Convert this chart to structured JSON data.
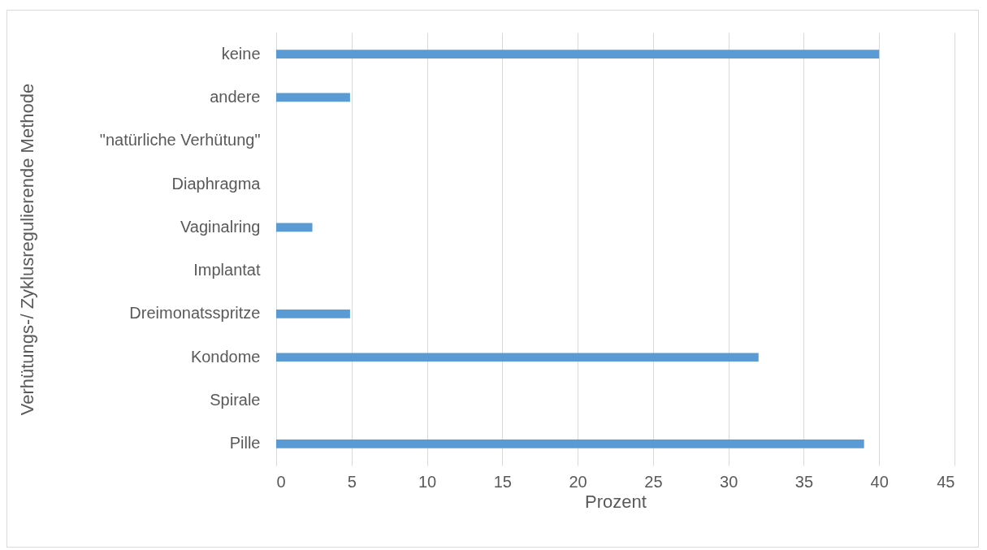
{
  "chart_data": {
    "type": "bar",
    "orientation": "horizontal",
    "xlabel": "Prozent",
    "ylabel": "Verhütungs-/ Zyklusregulierende Methode",
    "categories": [
      "keine",
      "andere",
      "\"natürliche Verhütung\"",
      "Diaphragma",
      "Vaginalring",
      "Implantat",
      "Dreimonatsspritze",
      "Kondome",
      "Spirale",
      "Pille"
    ],
    "values": [
      40,
      4.9,
      0,
      0,
      2.4,
      0,
      4.9,
      32,
      0,
      39
    ],
    "color": "#5b9bd5",
    "xlim": [
      0,
      45
    ],
    "xticks": [
      0,
      5,
      10,
      15,
      20,
      25,
      30,
      35,
      40,
      45
    ],
    "grid": "x"
  }
}
